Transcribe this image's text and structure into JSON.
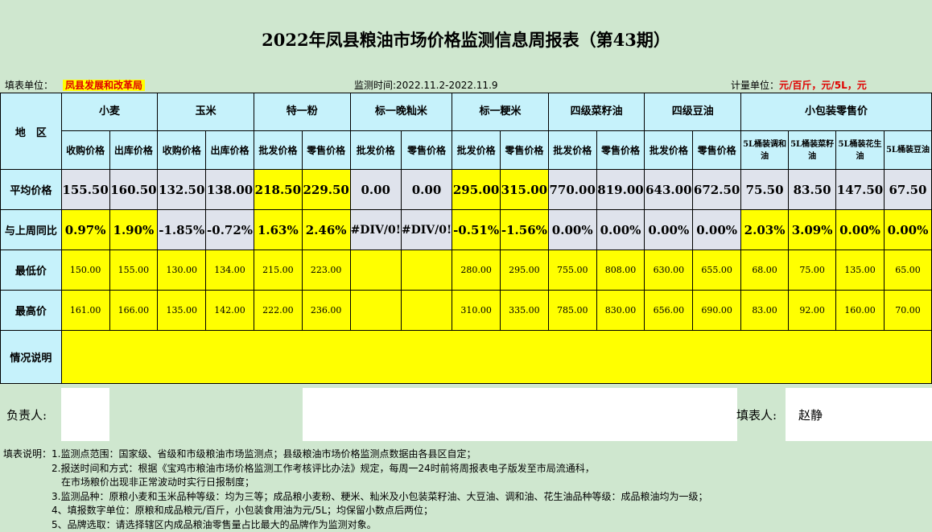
{
  "title": "2022年凤县粮油市场价格监测信息周报表（第43期）",
  "meta": {
    "filler_unit_label": "填表单位：",
    "filler_unit": "凤县发展和改革局",
    "period": "监测时间:2022.11.2-2022.11.9",
    "unit_label": "计量单位：",
    "unit_value": "元/百斤，元/5L，元"
  },
  "header": {
    "region": "地　区",
    "groups": [
      "小麦",
      "玉米",
      "特一粉",
      "标一晚籼米",
      "标一粳米",
      "四级菜籽油",
      "四级豆油",
      "小包装零售价"
    ],
    "subs": [
      "收购价格",
      "出库价格",
      "收购价格",
      "出库价格",
      "批发价格",
      "零售价格",
      "批发价格",
      "零售价格",
      "批发价格",
      "零售价格",
      "批发价格",
      "零售价格",
      "批发价格",
      "零售价格",
      "5L桶装调和油",
      "5L桶装菜籽油",
      "5L桶装花生油",
      "5L桶装豆油"
    ]
  },
  "rows": {
    "avg_label": "平均价格",
    "avg": [
      "155.50",
      "160.50",
      "132.50",
      "138.00",
      "218.50",
      "229.50",
      "0.00",
      "0.00",
      "295.00",
      "315.00",
      "770.00",
      "819.00",
      "643.00",
      "672.50",
      "75.50",
      "83.50",
      "147.50",
      "67.50"
    ],
    "chg_label": "与上周同比",
    "chg": [
      "0.97%",
      "1.90%",
      "-1.85%",
      "-0.72%",
      "1.63%",
      "2.46%",
      "#DIV/0!",
      "#DIV/0!",
      "-0.51%",
      "-1.56%",
      "0.00%",
      "0.00%",
      "0.00%",
      "0.00%",
      "2.03%",
      "3.09%",
      "0.00%",
      "0.00%"
    ],
    "min_label": "最低价",
    "min": [
      "150.00",
      "155.00",
      "130.00",
      "134.00",
      "215.00",
      "223.00",
      "",
      "",
      "280.00",
      "295.00",
      "755.00",
      "808.00",
      "630.00",
      "655.00",
      "68.00",
      "75.00",
      "135.00",
      "65.00"
    ],
    "max_label": "最高价",
    "max": [
      "161.00",
      "166.00",
      "135.00",
      "142.00",
      "222.00",
      "236.00",
      "",
      "",
      "310.00",
      "335.00",
      "785.00",
      "830.00",
      "656.00",
      "690.00",
      "83.00",
      "92.00",
      "160.00",
      "70.00"
    ],
    "note_label": "情况说明"
  },
  "signature": {
    "responsible_label": "负责人:",
    "filler_label": "填表人:",
    "filler_name": "赵静"
  },
  "notes": [
    "填表说明：1.监测点范围：国家级、省级和市级粮油市场监测点；县级粮油市场价格监测点数据由各县区自定；",
    "　　　　　2.报送时间和方式：根据《宝鸡市粮油市场价格监测工作考核评比办法》规定，每周一24时前将周报表电子版发至市局流通科，",
    "　　　　　　在市场粮价出现非正常波动时实行日报制度；",
    "　　　　　3.监测品种：原粮小麦和玉米品种等级：均为三等；成品粮小麦粉、粳米、籼米及小包装菜籽油、大豆油、调和油、花生油品种等级：成品粮油均为一级；",
    "　　　　　4、填报数字单位：原粮和成品粮元/百斤，小包装食用油为元/5L；均保留小数点后两位；",
    "　　　　　5、品牌选取：请选择辖区内成品粮油零售量占比最大的品牌作为监测对象。"
  ]
}
